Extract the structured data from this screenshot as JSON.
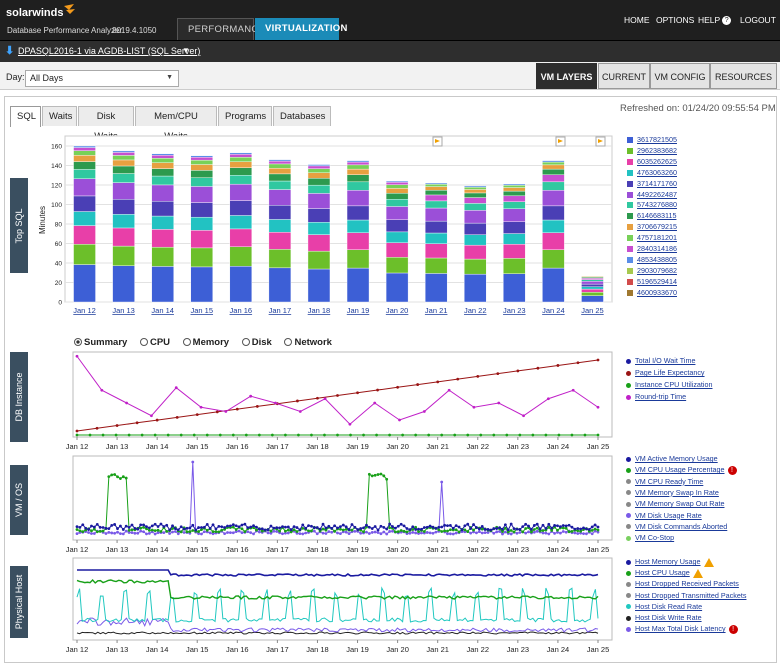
{
  "header": {
    "logo": "solarwinds",
    "app_name": "Database Performance Analyzer",
    "version": "2019.4.1050",
    "tabs": [
      "PERFORMANCE",
      "VIRTUALIZATION"
    ],
    "active_tab": "VIRTUALIZATION",
    "links": [
      "HOME",
      "OPTIONS",
      "HELP",
      "LOGOUT"
    ]
  },
  "db": {
    "name": "DPASQL2016-1 via AGDB-LIST (SQL Server)"
  },
  "toolbar": {
    "day_label": "Day:",
    "day_value": "All Days",
    "view_tabs": [
      "VM LAYERS",
      "CURRENT",
      "VM CONFIG",
      "RESOURCES"
    ],
    "active_view": "VM LAYERS"
  },
  "subtabs": [
    "SQL",
    "Waits",
    "Disk Waits",
    "Mem/CPU Waits",
    "Programs",
    "Databases"
  ],
  "active_subtab": "SQL",
  "refreshed": "Refreshed on: 01/24/20 09:55:54 PM",
  "sections": {
    "top_sql": "Top SQL",
    "db_instance": "DB Instance",
    "vm_os": "VM / OS",
    "physical_host": "Physical Host"
  },
  "radios": [
    "Summary",
    "CPU",
    "Memory",
    "Disk",
    "Network"
  ],
  "selected_radio": "Summary",
  "colors": {
    "accent": "#1b8bb8",
    "header_bg": "#1f1f1f"
  },
  "chart_data": [
    {
      "type": "bar",
      "stacked": true,
      "ylabel": "Minutes",
      "ylim": [
        0,
        160
      ],
      "yticks": [
        0,
        20,
        40,
        60,
        80,
        100,
        120,
        140,
        160
      ],
      "categories": [
        "Jan 12",
        "Jan 13",
        "Jan 14",
        "Jan 15",
        "Jan 16",
        "Jan 17",
        "Jan 18",
        "Jan 19",
        "Jan 20",
        "Jan 21",
        "Jan 22",
        "Jan 23",
        "Jan 24",
        "Jan 25"
      ],
      "totals": [
        160,
        155,
        152,
        150,
        153,
        146,
        141,
        145,
        124,
        122,
        119,
        121,
        145,
        27
      ],
      "legend": [
        "3617821505",
        "2962383682",
        "6035262625",
        "4763063260",
        "3714171760",
        "4492262487",
        "5743276880",
        "6146683115",
        "3706679215",
        "4757181201",
        "2840314186",
        "4853438805",
        "2903079682",
        "5196529414",
        "4600933670"
      ],
      "legend_colors": [
        "#3d5fd6",
        "#6cbf2a",
        "#e83fa8",
        "#22c2c2",
        "#4a3fb5",
        "#9b4fd8",
        "#30c8a0",
        "#2d9a4e",
        "#e7a040",
        "#78d158",
        "#c74fd0",
        "#5a8ee8",
        "#a7c94f",
        "#d24b4b",
        "#a07830"
      ]
    },
    {
      "type": "line",
      "x": [
        "Jan 12",
        "Jan 13",
        "Jan 14",
        "Jan 15",
        "Jan 16",
        "Jan 17",
        "Jan 18",
        "Jan 19",
        "Jan 20",
        "Jan 21",
        "Jan 22",
        "Jan 23",
        "Jan 24",
        "Jan 25"
      ],
      "series": [
        {
          "name": "Total I/O Wait Time",
          "color": "#1a1aa0"
        },
        {
          "name": "Page Life Expectancy",
          "color": "#9a1515"
        },
        {
          "name": "Instance CPU Utilization",
          "color": "#18a018"
        },
        {
          "name": "Round-trip Time",
          "color": "#c020c8"
        }
      ]
    },
    {
      "type": "line",
      "x": [
        "Jan 12",
        "Jan 13",
        "Jan 14",
        "Jan 15",
        "Jan 16",
        "Jan 17",
        "Jan 18",
        "Jan 19",
        "Jan 20",
        "Jan 21",
        "Jan 22",
        "Jan 23",
        "Jan 24",
        "Jan 25"
      ],
      "series": [
        {
          "name": "VM Active Memory Usage",
          "color": "#1a1aa0"
        },
        {
          "name": "VM CPU Usage Percentage",
          "color": "#18a018",
          "alert": true
        },
        {
          "name": "VM CPU Ready Time",
          "color": "#888"
        },
        {
          "name": "VM Memory Swap In Rate",
          "color": "#888"
        },
        {
          "name": "VM Memory Swap Out Rate",
          "color": "#888"
        },
        {
          "name": "VM Disk Usage Rate",
          "color": "#7a5ae8"
        },
        {
          "name": "VM Disk Commands Aborted",
          "color": "#888"
        },
        {
          "name": "VM Co-Stop",
          "color": "#7ad060"
        }
      ]
    },
    {
      "type": "line",
      "x": [
        "Jan 12",
        "Jan 13",
        "Jan 14",
        "Jan 15",
        "Jan 16",
        "Jan 17",
        "Jan 18",
        "Jan 19",
        "Jan 20",
        "Jan 21",
        "Jan 22",
        "Jan 23",
        "Jan 24",
        "Jan 25"
      ],
      "series": [
        {
          "name": "Host Memory Usage",
          "color": "#1a1aa0",
          "warning": true
        },
        {
          "name": "Host CPU Usage",
          "color": "#18a018",
          "warning": true
        },
        {
          "name": "Host Dropped Received Packets",
          "color": "#888"
        },
        {
          "name": "Host Dropped Transmitted Packets",
          "color": "#888"
        },
        {
          "name": "Host Disk Read Rate",
          "color": "#20c8c0"
        },
        {
          "name": "Host Disk Write Rate",
          "color": "#222"
        },
        {
          "name": "Host Max Total Disk Latency",
          "color": "#7a5ae8",
          "alert": true
        }
      ]
    }
  ]
}
